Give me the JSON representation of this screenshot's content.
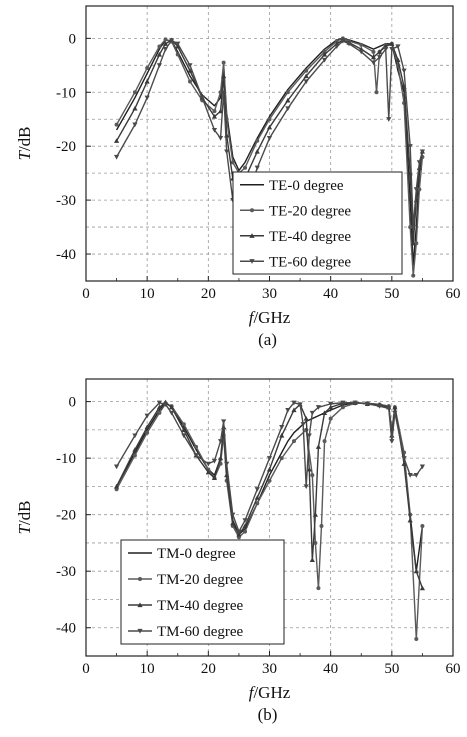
{
  "chart_data": [
    {
      "type": "line",
      "panel_label": "(a)",
      "xlabel_italic": "f",
      "xlabel_unit": "/GHz",
      "ylabel_italic": "T",
      "ylabel_unit": "/dB",
      "xlim": [
        0,
        60
      ],
      "ylim": [
        -45,
        6
      ],
      "xticks": [
        0,
        10,
        20,
        30,
        40,
        50,
        60
      ],
      "yticks": [
        0,
        -10,
        -20,
        -30,
        -40
      ],
      "grid": true,
      "legend_position": "lower-right",
      "series": [
        {
          "name": "TE-0 degree",
          "color": "#202020",
          "marker": "none",
          "x": [
            5,
            8,
            10,
            12,
            13,
            14,
            15,
            17,
            19,
            21,
            22,
            22.5,
            23,
            24,
            25,
            26,
            28,
            30,
            33,
            36,
            39,
            41,
            42,
            43,
            45,
            47,
            48,
            49,
            50,
            51,
            52,
            53,
            53.5,
            54,
            54.5,
            55
          ],
          "y": [
            -17,
            -11,
            -6.5,
            -2,
            -0.3,
            -0.5,
            -2.5,
            -7,
            -10.5,
            -12.5,
            -11,
            -5,
            -14,
            -22,
            -24.5,
            -23,
            -18.5,
            -14.5,
            -9.5,
            -5.5,
            -2,
            -0.3,
            0,
            -0.3,
            -1,
            -2,
            -1.5,
            -1,
            -1,
            -6,
            -10,
            -30,
            -42,
            -35,
            -25,
            -21
          ]
        },
        {
          "name": "TE-20 degree",
          "color": "#5a5a5a",
          "marker": "circle",
          "x": [
            5,
            8,
            10,
            12,
            13,
            14,
            15,
            17,
            19,
            21,
            22,
            22.5,
            23,
            24,
            25,
            26,
            28,
            30,
            33,
            36,
            39,
            41,
            42,
            43,
            45,
            47,
            47.5,
            48,
            49,
            50,
            51,
            52,
            53,
            53.5,
            54,
            54.5,
            55
          ],
          "y": [
            -16,
            -10,
            -5.5,
            -1.5,
            -0.2,
            -0.6,
            -3,
            -8,
            -11.5,
            -13.5,
            -10,
            -4.5,
            -15,
            -23,
            -25,
            -24,
            -19,
            -15,
            -10,
            -6,
            -2.5,
            -0.5,
            0,
            -0.5,
            -1.2,
            -2.5,
            -10,
            -2.5,
            -1.2,
            -1,
            -5,
            -12,
            -35,
            -44,
            -38,
            -28,
            -22
          ]
        },
        {
          "name": "TE-40 degree",
          "color": "#3a3a3a",
          "marker": "triangle-up",
          "x": [
            5,
            8,
            10,
            12,
            13,
            14,
            15,
            17,
            19,
            21,
            22,
            22.5,
            23,
            24,
            25,
            26,
            28,
            30,
            33,
            36,
            39,
            41,
            42,
            43,
            45,
            47,
            48,
            49,
            50,
            51,
            52,
            53,
            53.5,
            54,
            54.5,
            55
          ],
          "y": [
            -19,
            -13,
            -8,
            -3,
            -1,
            -0.3,
            -1.5,
            -6,
            -11,
            -14.5,
            -13.5,
            -7,
            -18,
            -26,
            -27.5,
            -26,
            -21,
            -16.5,
            -11.5,
            -7,
            -3,
            -1,
            -0.3,
            -0.8,
            -2,
            -3.5,
            -2.5,
            -1.5,
            -1,
            -4,
            -9,
            -25,
            -38,
            -30,
            -24,
            -21
          ]
        },
        {
          "name": "TE-60 degree",
          "color": "#4a4a4a",
          "marker": "triangle-down",
          "x": [
            5,
            8,
            10,
            12,
            13,
            14,
            15,
            17,
            19,
            21,
            22,
            22.5,
            23,
            24,
            25,
            26,
            28,
            30,
            33,
            36,
            39,
            41,
            42,
            43,
            45,
            47,
            48,
            49,
            49.5,
            50,
            51,
            52,
            53,
            53.5,
            54,
            54.5,
            55
          ],
          "y": [
            -22,
            -16,
            -11,
            -5,
            -2,
            -0.4,
            -1,
            -5,
            -11,
            -17,
            -18.5,
            -10,
            -21,
            -30,
            -33.5,
            -31,
            -24,
            -18.5,
            -13,
            -8,
            -4,
            -1.5,
            -0.5,
            -1,
            -2.5,
            -4.5,
            -3.5,
            -2,
            -15,
            -2,
            -1.5,
            -6,
            -20,
            -35,
            -28,
            -23,
            -21
          ]
        }
      ]
    },
    {
      "type": "line",
      "panel_label": "(b)",
      "xlabel_italic": "f",
      "xlabel_unit": "/GHz",
      "ylabel_italic": "T",
      "ylabel_unit": "/dB",
      "xlim": [
        0,
        60
      ],
      "ylim": [
        -45,
        4
      ],
      "xticks": [
        0,
        10,
        20,
        30,
        40,
        50,
        60
      ],
      "yticks": [
        0,
        -10,
        -20,
        -30,
        -40
      ],
      "grid": true,
      "legend_position": "lower-left",
      "series": [
        {
          "name": "TM-0 degree",
          "color": "#202020",
          "marker": "none",
          "x": [
            5,
            8,
            10,
            12,
            13,
            14,
            16,
            18,
            20,
            21,
            22,
            22.5,
            23,
            24,
            25,
            26,
            28,
            30,
            32,
            33,
            34,
            35,
            36,
            37,
            38,
            39,
            40,
            42,
            44,
            46,
            48,
            49.5,
            50,
            50.5,
            52,
            53,
            54,
            55
          ],
          "y": [
            -15,
            -9,
            -5,
            -1.5,
            -0.2,
            -1,
            -4.5,
            -8.5,
            -12,
            -13,
            -10,
            -5,
            -13,
            -21,
            -23.5,
            -22.5,
            -18,
            -13,
            -9,
            -7,
            -5.5,
            -4.5,
            -3.5,
            -3,
            -2.5,
            -2,
            -1.5,
            -0.6,
            -0.2,
            -0.3,
            -0.5,
            -0.8,
            -6,
            -1,
            -10,
            -20,
            -30,
            -22
          ]
        },
        {
          "name": "TM-20 degree",
          "color": "#5a5a5a",
          "marker": "circle",
          "x": [
            5,
            8,
            10,
            12,
            13,
            14,
            16,
            18,
            20,
            21,
            22,
            22.5,
            23,
            24,
            25,
            26,
            28,
            30,
            32,
            34,
            36,
            37,
            37.5,
            38,
            38.5,
            39,
            40,
            42,
            44,
            46,
            48,
            49.5,
            50,
            50.5,
            52,
            53,
            54,
            55
          ],
          "y": [
            -15.5,
            -9.5,
            -5.5,
            -2,
            -0.4,
            -0.8,
            -4,
            -8,
            -12,
            -13.5,
            -11,
            -6,
            -14,
            -22,
            -24,
            -23,
            -18,
            -14,
            -10,
            -7,
            -5,
            -13,
            -25,
            -33,
            -22,
            -7,
            -3,
            -1,
            -0.3,
            -0.3,
            -0.5,
            -0.8,
            -5,
            -1,
            -9,
            -20,
            -42,
            -22
          ]
        },
        {
          "name": "TM-40 degree",
          "color": "#3a3a3a",
          "marker": "triangle-up",
          "x": [
            5,
            8,
            10,
            12,
            13,
            14,
            16,
            18,
            20,
            21,
            22,
            22.5,
            23,
            24,
            25,
            26,
            28,
            30,
            32,
            34,
            35,
            36,
            36.5,
            37,
            37.5,
            38,
            39,
            40,
            42,
            44,
            46,
            48,
            49.5,
            50,
            50.5,
            52,
            53,
            54,
            55
          ],
          "y": [
            -15,
            -8.5,
            -4.5,
            -1,
            -0.1,
            -1,
            -5,
            -9.5,
            -12.5,
            -13.5,
            -10,
            -4.5,
            -13,
            -21.5,
            -23.5,
            -22,
            -17,
            -12,
            -6,
            -1.5,
            -0.5,
            -3,
            -12,
            -28,
            -20,
            -8,
            -2,
            -1,
            -0.3,
            -0.2,
            -0.4,
            -0.6,
            -1,
            -6,
            -1,
            -11,
            -21,
            -30,
            -33
          ]
        },
        {
          "name": "TM-60 degree",
          "color": "#4a4a4a",
          "marker": "triangle-down",
          "x": [
            5,
            8,
            10,
            12,
            13,
            14,
            16,
            18,
            20,
            21,
            22,
            22.5,
            23,
            24,
            25,
            26,
            28,
            30,
            32,
            33,
            34,
            35,
            35.5,
            36,
            36.5,
            37,
            38,
            40,
            42,
            44,
            46,
            48,
            49.5,
            50,
            50.5,
            52,
            53,
            54,
            55
          ],
          "y": [
            -11.5,
            -6,
            -2.5,
            -0.2,
            -0.5,
            -2,
            -6,
            -9.5,
            -11,
            -10.5,
            -7,
            -3.5,
            -11,
            -20,
            -23,
            -21,
            -15.5,
            -10,
            -4.5,
            -1.5,
            -0.2,
            -0.5,
            -4,
            -15,
            -6,
            -2,
            -1,
            -0.4,
            -0.2,
            -0.2,
            -0.4,
            -0.8,
            -1.2,
            -7,
            -2,
            -10,
            -13,
            -13,
            -11.5
          ]
        }
      ]
    }
  ]
}
